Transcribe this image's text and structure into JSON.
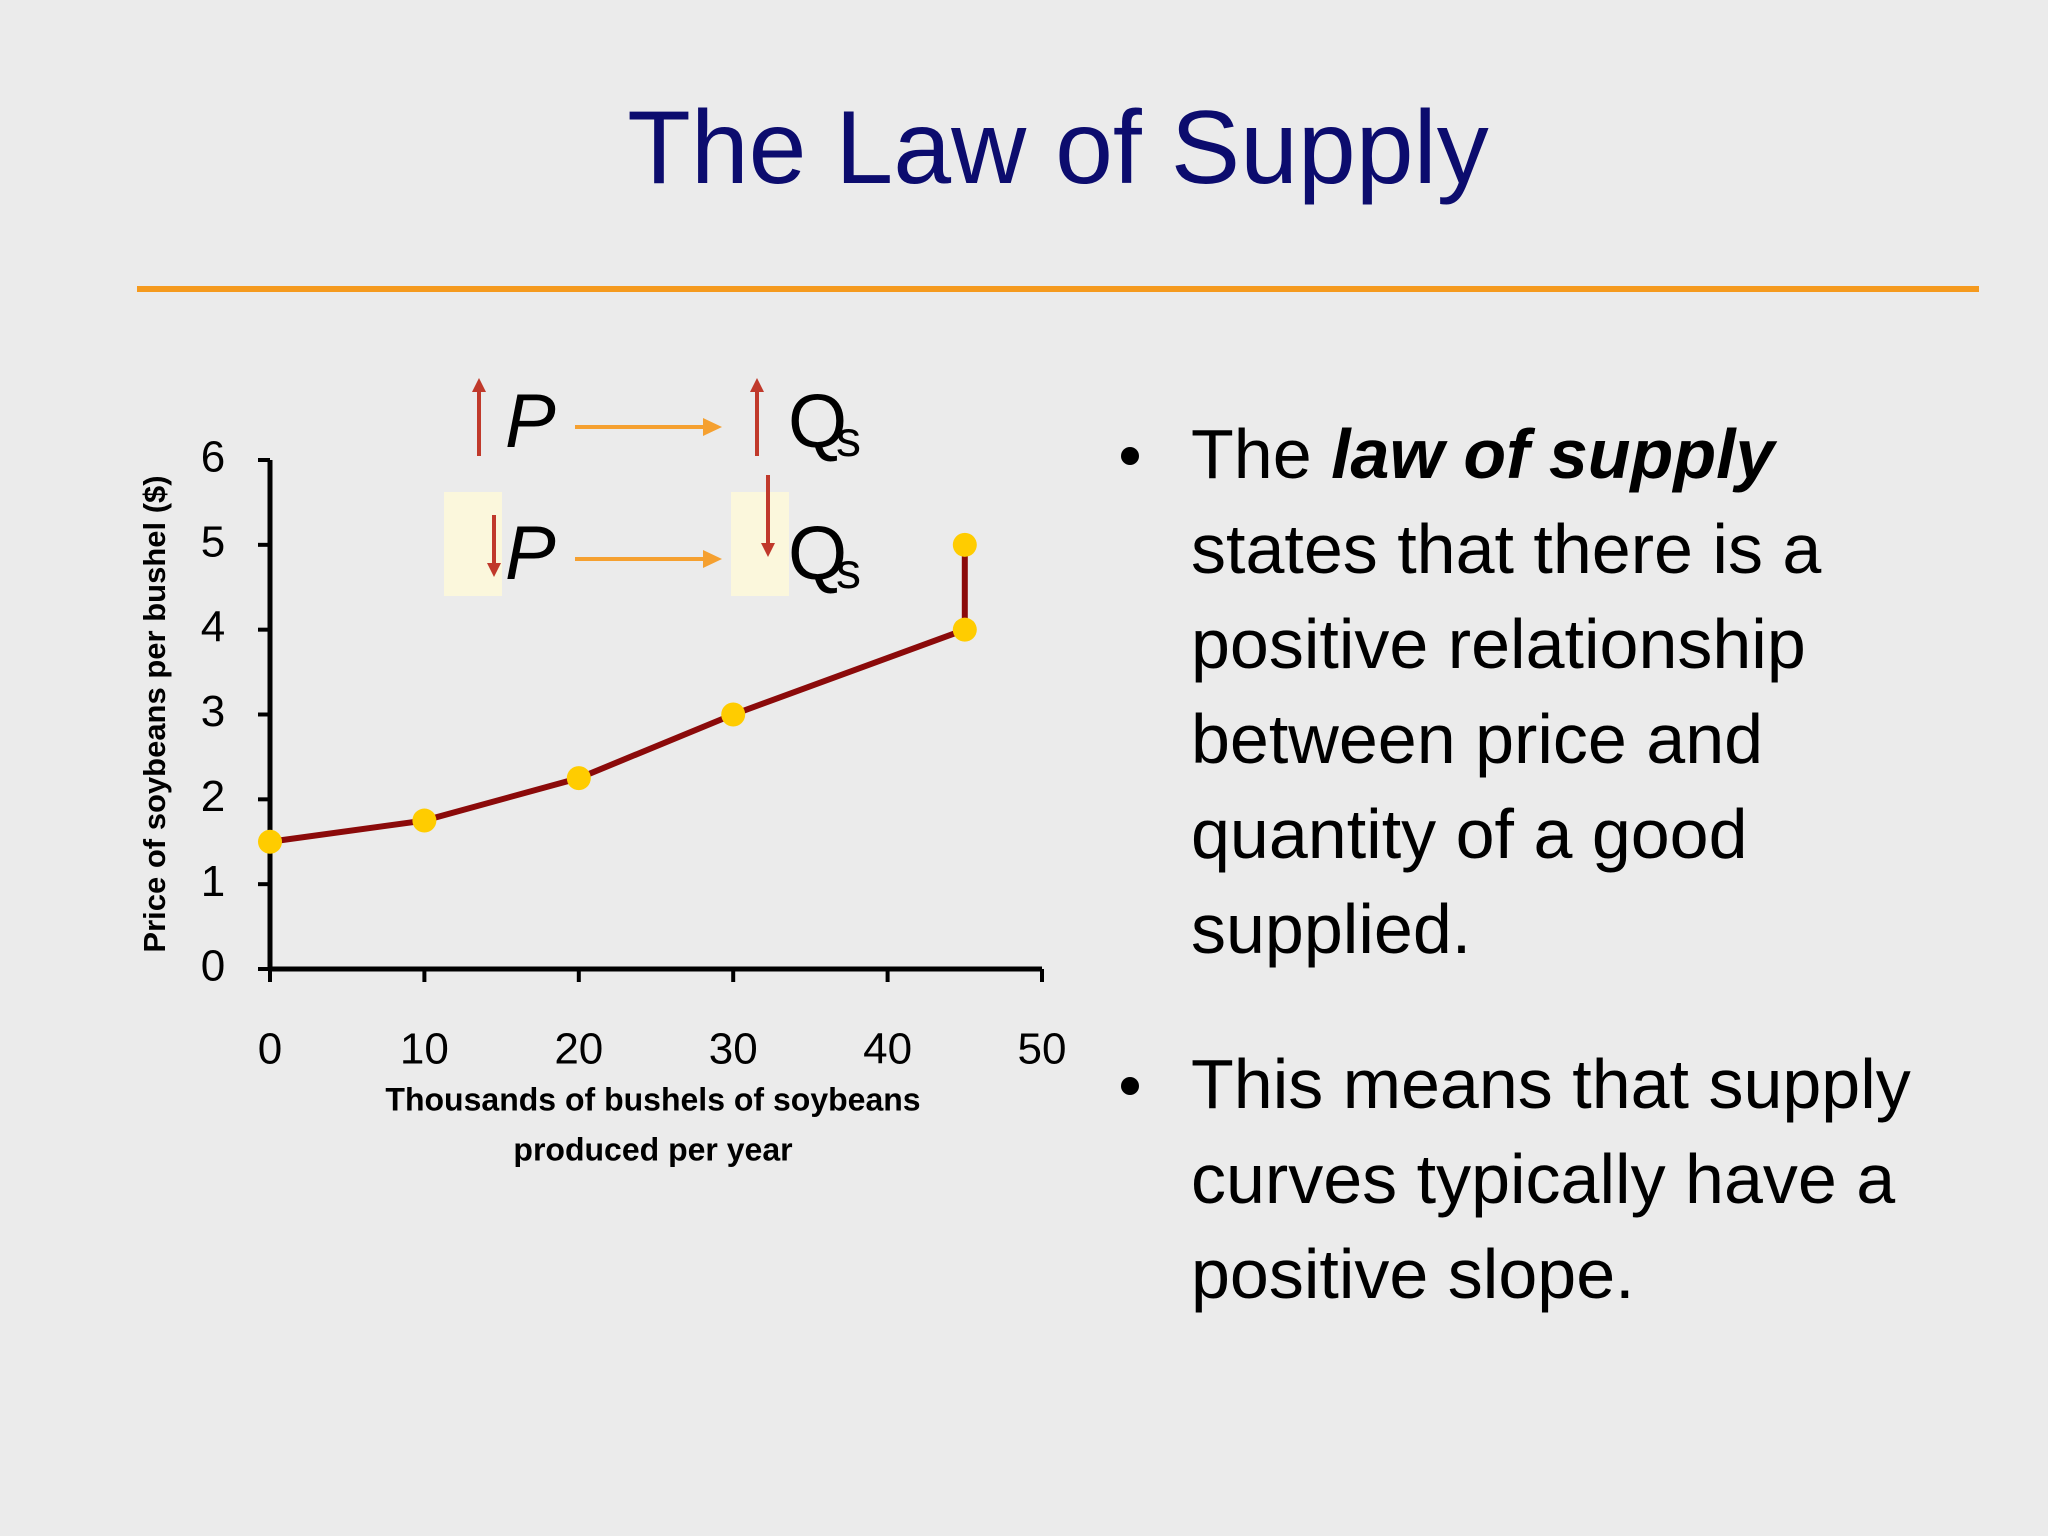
{
  "title": "The Law of Supply",
  "chart_data": {
    "type": "line",
    "y_label": "Price of soybeans per bushel ($)",
    "x_label": [
      "Thousands of bushels of soybeans",
      "produced per year"
    ],
    "x": [
      0,
      10,
      20,
      30,
      45,
      45
    ],
    "values": [
      1.5,
      1.75,
      2.25,
      3,
      4,
      5
    ],
    "color": "#8b0a0a",
    "marker_color": "#ffcc00",
    "xlim": [
      0,
      50
    ],
    "xticks": [
      0,
      10,
      20,
      30,
      40,
      50
    ],
    "ylim": [
      0,
      6
    ],
    "yticks": [
      0,
      1,
      2,
      3,
      4,
      5,
      6
    ],
    "grid": false,
    "annotations": [
      {
        "from": "P",
        "to": "Q",
        "sub": "s"
      },
      {
        "from": "P",
        "to": "Q",
        "sub": "s"
      }
    ]
  },
  "bullets": [
    [
      "The",
      "law of supply",
      "states that there is a positive relationship between price and quantity of a good supplied."
    ],
    [
      "This means that supply curves typically have a positive slope."
    ]
  ]
}
